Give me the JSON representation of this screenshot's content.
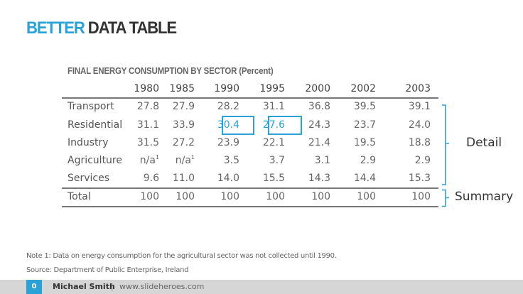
{
  "slide": {
    "title_accent": "BETTER",
    "title_rest": "DATA TABLE",
    "subtitle": "FINAL ENERGY CONSUMPTION BY SECTOR (Percent)"
  },
  "table": {
    "columns": [
      "1980",
      "1985",
      "1990",
      "1995",
      "2000",
      "2002",
      "2003"
    ],
    "rows": [
      {
        "label": "Transport",
        "values": [
          "27.8",
          "27.9",
          "28.2",
          "31.1",
          "36.8",
          "39.5",
          "39.1"
        ]
      },
      {
        "label": "Residential",
        "values": [
          "31.1",
          "33.9",
          "30.4",
          "27.6",
          "24.3",
          "23.7",
          "24.0"
        ]
      },
      {
        "label": "Industry",
        "values": [
          "31.5",
          "27.2",
          "23.9",
          "22.1",
          "21.4",
          "19.5",
          "18.8"
        ]
      },
      {
        "label": "Agriculture",
        "values": [
          "n/a",
          "n/a",
          "3.5",
          "3.7",
          "3.1",
          "2.9",
          "2.9"
        ],
        "footnote_marks": [
          "1",
          "1"
        ]
      },
      {
        "label": "Services",
        "values": [
          "9.6",
          "11.0",
          "14.0",
          "15.5",
          "14.3",
          "14.4",
          "15.3"
        ]
      }
    ],
    "total": {
      "label": "Total",
      "values": [
        "100",
        "100",
        "100",
        "100",
        "100",
        "100",
        "100"
      ]
    },
    "highlighted_cells": [
      {
        "row": "Residential",
        "column": "1990"
      },
      {
        "row": "Residential",
        "column": "1995"
      }
    ],
    "highlight_color": "#2aa2d6"
  },
  "annotations": {
    "detail": "Detail",
    "summary": "Summary"
  },
  "notes": {
    "note1": "Note 1:  Data on energy consumption for the agricultural sector was not collected until 1990.",
    "source": "Source:  Department of Public Enterprise, Ireland"
  },
  "footer": {
    "page_number": "0",
    "author": "Michael Smith",
    "separator": "|",
    "website": "www.slideheroes.com"
  },
  "colors": {
    "accent": "#2aa2d6",
    "text_dark": "#333333",
    "footer_bg": "#d6d6d6"
  }
}
